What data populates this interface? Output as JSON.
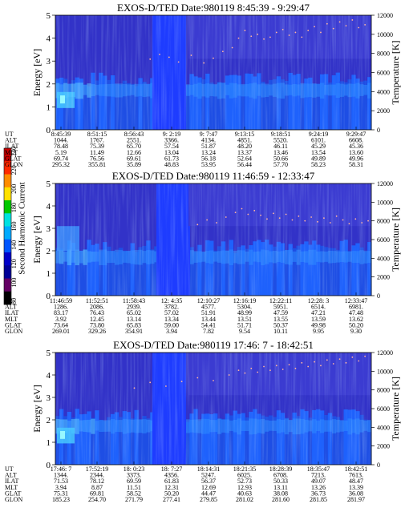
{
  "figure": {
    "colorbar": {
      "label": "Second Harmonic Current",
      "ticks": [
        "240",
        "220",
        "200",
        "180",
        "160",
        "140",
        "120",
        "100",
        "80"
      ],
      "colors": [
        "#c80000",
        "#ff2a00",
        "#ff8c00",
        "#ffe100",
        "#00c800",
        "#00e1e1",
        "#00aaff",
        "#0055ff",
        "#0000c8",
        "#000096",
        "#640064",
        "#000000"
      ]
    },
    "axes": {
      "energy_label": "Energy [eV]",
      "temperature_label": "Temperature [K]",
      "energy_ticks": [
        "0",
        "1",
        "2",
        "3",
        "4",
        "5"
      ],
      "temperature_ticks": [
        "0",
        "2000",
        "4000",
        "6000",
        "8000",
        "10000",
        "12000"
      ]
    },
    "row_labels": [
      "UT",
      "ALT",
      "ILAT",
      "MLT",
      "GLAT",
      "GLON"
    ]
  },
  "chart_data": [
    {
      "type": "heatmap",
      "title": "EXOS-D/TED   Date:980119   8:45:39 - 9:29:47",
      "ylabel": "Energy [eV]",
      "ylim": [
        0,
        5
      ],
      "y2label": "Temperature [K]",
      "y2lim": [
        0,
        12000
      ],
      "columns": [
        {
          "UT": "8:45:39",
          "ALT": "1044.",
          "ILAT": "78.48",
          "MLT": "5.19",
          "GLAT": "69.74",
          "GLON": "295.32"
        },
        {
          "UT": "8:51:15",
          "ALT": "1767.",
          "ILAT": "75.39",
          "MLT": "11.49",
          "GLAT": "76.56",
          "GLON": "355.81"
        },
        {
          "UT": "8:56:43",
          "ALT": "2551.",
          "ILAT": "65.70",
          "MLT": "12.66",
          "GLAT": "69.61",
          "GLON": "35.89"
        },
        {
          "UT": "9: 2:19",
          "ALT": "3366.",
          "ILAT": "57.54",
          "MLT": "13.04",
          "GLAT": "61.73",
          "GLON": "48.83"
        },
        {
          "UT": "9: 7:47",
          "ALT": "4134.",
          "ILAT": "51.87",
          "MLT": "13.24",
          "GLAT": "56.18",
          "GLON": "53.95"
        },
        {
          "UT": "9:13:15",
          "ALT": "4851.",
          "ILAT": "48.20",
          "MLT": "13.37",
          "GLAT": "52.64",
          "GLON": "56.44"
        },
        {
          "UT": "9:18:51",
          "ALT": "5520.",
          "ILAT": "46.11",
          "MLT": "13.46",
          "GLAT": "50.66",
          "GLON": "57.70"
        },
        {
          "UT": "9:24:19",
          "ALT": "6101.",
          "ILAT": "45.29",
          "MLT": "13.54",
          "GLAT": "49.89",
          "GLON": "58.23"
        },
        {
          "UT": "9:29:47",
          "ALT": "6608.",
          "ILAT": "45.36",
          "MLT": "13.60",
          "GLAT": "49.96",
          "GLON": "58.31"
        }
      ],
      "temperature_points": [
        [
          0.3,
          7400
        ],
        [
          0.33,
          7900
        ],
        [
          0.36,
          7600
        ],
        [
          0.39,
          7100
        ],
        [
          0.43,
          7800
        ],
        [
          0.47,
          7000
        ],
        [
          0.5,
          7500
        ],
        [
          0.53,
          8200
        ],
        [
          0.56,
          8600
        ],
        [
          0.58,
          9600
        ],
        [
          0.6,
          10400
        ],
        [
          0.62,
          9800
        ],
        [
          0.64,
          10000
        ],
        [
          0.66,
          9500
        ],
        [
          0.68,
          9700
        ],
        [
          0.7,
          10200
        ],
        [
          0.72,
          10500
        ],
        [
          0.74,
          9900
        ],
        [
          0.76,
          10200
        ],
        [
          0.78,
          9700
        ],
        [
          0.8,
          10400
        ],
        [
          0.82,
          10800
        ],
        [
          0.84,
          10200
        ],
        [
          0.86,
          11100
        ],
        [
          0.88,
          10600
        ],
        [
          0.9,
          11300
        ],
        [
          0.92,
          10900
        ],
        [
          0.94,
          11500
        ],
        [
          0.96,
          10700
        ],
        [
          0.98,
          11000
        ]
      ]
    },
    {
      "type": "heatmap",
      "title": "EXOS-D/TED   Date:980119   11:46:59 - 12:33:47",
      "ylabel": "Energy [eV]",
      "ylim": [
        0,
        5
      ],
      "y2label": "Temperature [K]",
      "y2lim": [
        0,
        12000
      ],
      "columns": [
        {
          "UT": "11:46:59",
          "ALT": "1286.",
          "ILAT": "83.17",
          "MLT": "3.92",
          "GLAT": "73.64",
          "GLON": "269.01"
        },
        {
          "UT": "11:52:51",
          "ALT": "2086.",
          "ILAT": "76.43",
          "MLT": "12.45",
          "GLAT": "73.80",
          "GLON": "329.26"
        },
        {
          "UT": "11:58:43",
          "ALT": "2939.",
          "ILAT": "65.02",
          "MLT": "13.14",
          "GLAT": "65.83",
          "GLON": "354.91"
        },
        {
          "UT": "12: 4:35",
          "ALT": "3782.",
          "ILAT": "57.02",
          "MLT": "13.34",
          "GLAT": "59.00",
          "GLON": "3.94"
        },
        {
          "UT": "12:10:27",
          "ALT": "4577.",
          "ILAT": "51.91",
          "MLT": "13.44",
          "GLAT": "54.41",
          "GLON": "7.82"
        },
        {
          "UT": "12:16:19",
          "ALT": "5304.",
          "ILAT": "48.99",
          "MLT": "13.51",
          "GLAT": "51.71",
          "GLON": "9.54"
        },
        {
          "UT": "12:22:11",
          "ALT": "5951.",
          "ILAT": "47.59",
          "MLT": "13.55",
          "GLAT": "50.37",
          "GLON": "10.11"
        },
        {
          "UT": "12:28: 3",
          "ALT": "6514.",
          "ILAT": "47.21",
          "MLT": "13.59",
          "GLAT": "49.98",
          "GLON": "9.95"
        },
        {
          "UT": "12:33:47",
          "ALT": "6981.",
          "ILAT": "47.48",
          "MLT": "13.62",
          "GLAT": "50.20",
          "GLON": "9.30"
        }
      ],
      "temperature_points": [
        [
          0.45,
          7600
        ],
        [
          0.48,
          8100
        ],
        [
          0.51,
          7800
        ],
        [
          0.54,
          8400
        ],
        [
          0.57,
          8900
        ],
        [
          0.59,
          9300
        ],
        [
          0.61,
          8700
        ],
        [
          0.63,
          9100
        ],
        [
          0.65,
          8600
        ],
        [
          0.67,
          8200
        ],
        [
          0.69,
          8800
        ],
        [
          0.71,
          8300
        ],
        [
          0.73,
          8700
        ],
        [
          0.75,
          8100
        ],
        [
          0.77,
          8500
        ],
        [
          0.79,
          8000
        ],
        [
          0.81,
          8400
        ],
        [
          0.83,
          7900
        ],
        [
          0.85,
          8300
        ],
        [
          0.87,
          7800
        ],
        [
          0.89,
          8500
        ],
        [
          0.91,
          8100
        ],
        [
          0.93,
          7700
        ],
        [
          0.95,
          8200
        ],
        [
          0.97,
          7800
        ],
        [
          0.99,
          8000
        ]
      ]
    },
    {
      "type": "heatmap",
      "title": "EXOS-D/TED   Date:980119   17:46: 7 - 18:42:51",
      "ylabel": "Energy [eV]",
      "ylim": [
        0,
        5
      ],
      "y2label": "Temperature [K]",
      "y2lim": [
        0,
        12000
      ],
      "columns": [
        {
          "UT": "17:46: 7",
          "ALT": "1344.",
          "ILAT": "71.53",
          "MLT": "3.94",
          "GLAT": "75.31",
          "GLON": "185.23"
        },
        {
          "UT": "17:52:19",
          "ALT": "2344.",
          "ILAT": "78.12",
          "MLT": "8.87",
          "GLAT": "69.81",
          "GLON": "254.70"
        },
        {
          "UT": "18: 0:23",
          "ALT": "3373.",
          "ILAT": "69.59",
          "MLT": "11.51",
          "GLAT": "58.52",
          "GLON": "271.79"
        },
        {
          "UT": "18: 7:27",
          "ALT": "4356.",
          "ILAT": "61.83",
          "MLT": "12.31",
          "GLAT": "50.20",
          "GLON": "277.41"
        },
        {
          "UT": "18:14:31",
          "ALT": "5247.",
          "ILAT": "56.37",
          "MLT": "12.69",
          "GLAT": "44.47",
          "GLON": "279.85"
        },
        {
          "UT": "18:21:35",
          "ALT": "6025.",
          "ILAT": "52.73",
          "MLT": "12.93",
          "GLAT": "40.63",
          "GLON": "281.02"
        },
        {
          "UT": "18:28:39",
          "ALT": "6708.",
          "ILAT": "50.33",
          "MLT": "13.11",
          "GLAT": "38.08",
          "GLON": "281.60"
        },
        {
          "UT": "18:35:47",
          "ALT": "7213.",
          "ILAT": "49.07",
          "MLT": "13.26",
          "GLAT": "36.73",
          "GLON": "281.85"
        },
        {
          "UT": "18:42:51",
          "ALT": "7613.",
          "ILAT": "48.47",
          "MLT": "13.39",
          "GLAT": "36.08",
          "GLON": "281.97"
        }
      ],
      "temperature_points": [
        [
          0.25,
          8200
        ],
        [
          0.3,
          8800
        ],
        [
          0.35,
          8400
        ],
        [
          0.4,
          8900
        ],
        [
          0.45,
          9300
        ],
        [
          0.5,
          9000
        ],
        [
          0.55,
          9600
        ],
        [
          0.58,
          10100
        ],
        [
          0.6,
          9800
        ],
        [
          0.62,
          10300
        ],
        [
          0.64,
          9900
        ],
        [
          0.66,
          10500
        ],
        [
          0.68,
          10100
        ],
        [
          0.7,
          10600
        ],
        [
          0.72,
          10200
        ],
        [
          0.74,
          10700
        ],
        [
          0.76,
          10300
        ],
        [
          0.78,
          10900
        ],
        [
          0.8,
          10500
        ],
        [
          0.82,
          11000
        ],
        [
          0.84,
          10600
        ],
        [
          0.86,
          11200
        ],
        [
          0.88,
          10800
        ],
        [
          0.9,
          11300
        ],
        [
          0.92,
          10900
        ],
        [
          0.94,
          11500
        ],
        [
          0.96,
          11100
        ],
        [
          0.98,
          11600
        ]
      ]
    }
  ]
}
